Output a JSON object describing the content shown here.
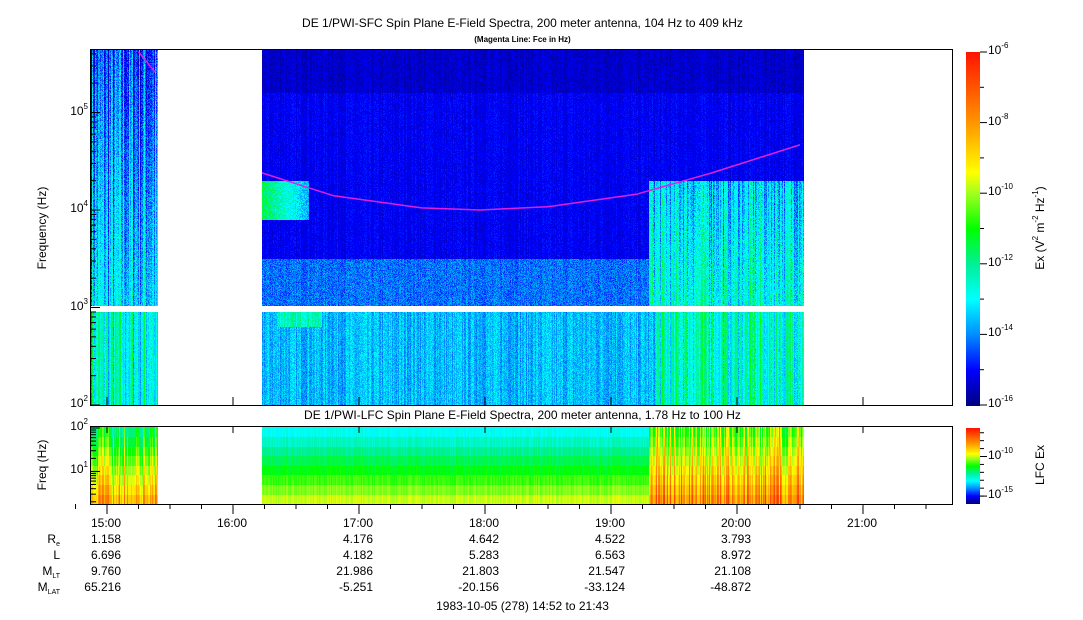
{
  "chart_data": [
    {
      "type": "heatmap",
      "title": "DE 1/PWI-SFC  Spin Plane E-Field Spectra, 200 meter antenna, 104 Hz to 409 kHz",
      "subtitle": "(Magenta Line: Fce in Hz)",
      "ylabel": "Frequency (Hz)",
      "yscale": "log",
      "ylim": [
        100,
        409000
      ],
      "yticks": [
        {
          "base": "10",
          "exp": "2"
        },
        {
          "base": "10",
          "exp": "3"
        },
        {
          "base": "10",
          "exp": "4"
        },
        {
          "base": "10",
          "exp": "5"
        }
      ],
      "xlim_hours": [
        14.867,
        21.717
      ],
      "data_coverage_hours": [
        [
          14.867,
          15.4
        ],
        [
          16.23,
          20.53
        ]
      ],
      "colorbar": {
        "label": "Ex (V",
        "label_parts": [
          "Ex (V",
          "2",
          " m",
          "-2",
          " Hz",
          "-1",
          ")"
        ],
        "range_log10": [
          -16,
          -6
        ],
        "ticks": [
          {
            "base": "10",
            "exp": "-6"
          },
          {
            "base": "10",
            "exp": "-8"
          },
          {
            "base": "10",
            "exp": "-10"
          },
          {
            "base": "10",
            "exp": "-12"
          },
          {
            "base": "10",
            "exp": "-14"
          },
          {
            "base": "10",
            "exp": "-16"
          }
        ]
      },
      "fce_line": {
        "color": "#e020e0",
        "points_hours_hz": [
          [
            15.25,
            420000
          ],
          [
            15.38,
            260000
          ],
          [
            16.23,
            24000
          ],
          [
            16.8,
            14000
          ],
          [
            17.5,
            10500
          ],
          [
            17.96,
            10000
          ],
          [
            18.5,
            10800
          ],
          [
            19.2,
            14500
          ],
          [
            19.8,
            24000
          ],
          [
            20.5,
            46600
          ]
        ]
      }
    },
    {
      "type": "heatmap",
      "title": "DE 1/PWI-LFC  Spin Plane E-Field Spectra, 200 meter antenna, 1.78 Hz to 100 Hz",
      "ylabel": "Freq (Hz)",
      "yscale": "log",
      "ylim": [
        1.78,
        100
      ],
      "yticks": [
        {
          "base": "10",
          "exp": "1"
        },
        {
          "base": "10",
          "exp": "2"
        }
      ],
      "colorbar": {
        "label": "LFC Ex",
        "range_log10": [
          -16,
          -6.4
        ],
        "ticks": [
          {
            "base": "10",
            "exp": "-10"
          },
          {
            "base": "10",
            "exp": "-15"
          }
        ]
      }
    }
  ],
  "xaxis": {
    "ticks": [
      "15:00",
      "16:00",
      "17:00",
      "18:00",
      "19:00",
      "20:00",
      "21:00"
    ],
    "tick_hours": [
      15,
      16,
      17,
      18,
      19,
      20,
      21
    ]
  },
  "ephemeris": {
    "rows": [
      {
        "main": "R",
        "sub": "e",
        "values": [
          "1.158",
          "",
          "4.176",
          "4.642",
          "4.522",
          "3.793"
        ]
      },
      {
        "main": "L",
        "sub": "",
        "values": [
          "6.696",
          "",
          "4.182",
          "5.283",
          "6.563",
          "8.972"
        ]
      },
      {
        "main": "M",
        "sub": "LT",
        "values": [
          "9.760",
          "",
          "21.986",
          "21.803",
          "21.547",
          "21.108"
        ]
      },
      {
        "main": "M",
        "sub": "LAT",
        "values": [
          "65.216",
          "",
          "-5.251",
          "-20.156",
          "-33.124",
          "-48.872"
        ]
      }
    ],
    "date_range": "1983-10-05 (278) 14:52 to 21:43"
  }
}
